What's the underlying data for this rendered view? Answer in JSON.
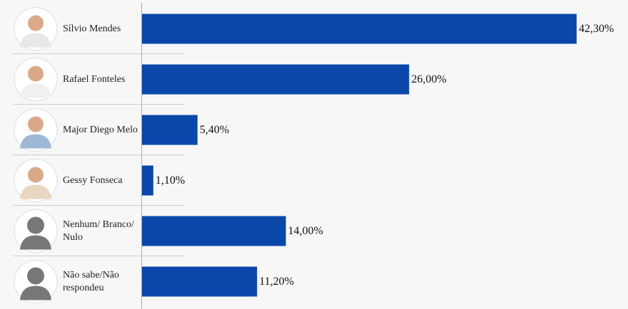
{
  "chart_data": {
    "type": "bar",
    "orientation": "horizontal",
    "categories": [
      "Sílvio Mendes",
      "Rafael Fonteles",
      "Major Diego Melo",
      "Gessy Fonseca",
      "Nenhum/ Branco/ Nulo",
      "Não sabe/Não respondeu"
    ],
    "values": [
      42.3,
      26.0,
      5.4,
      1.1,
      14.0,
      11.2
    ],
    "value_labels": [
      "42,30%",
      "26,00%",
      "5,40%",
      "1,10%",
      "14,00%",
      "11,20%"
    ],
    "color": "#0a47a9"
  }
}
